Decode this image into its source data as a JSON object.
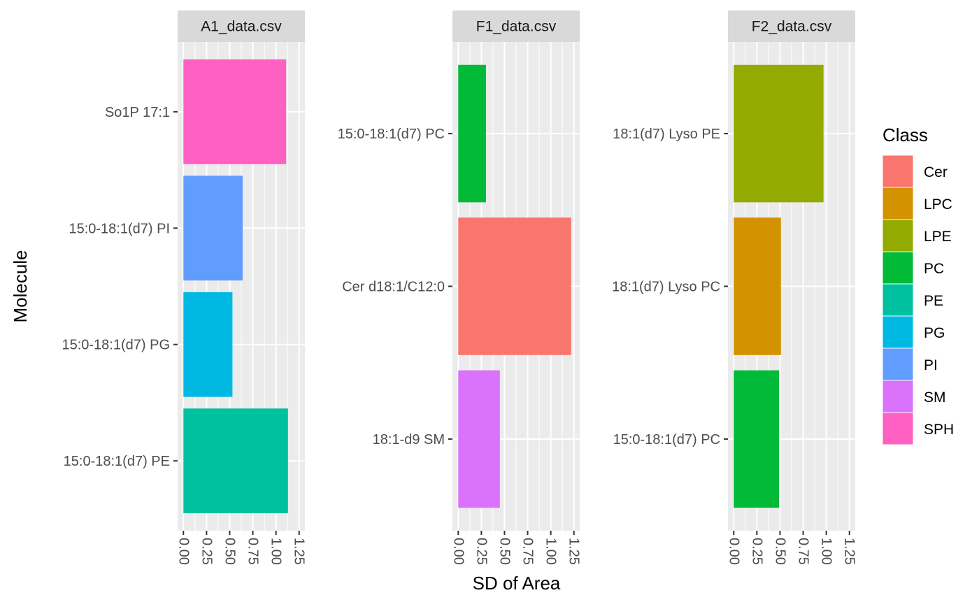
{
  "chart_data": {
    "type": "bar",
    "orientation": "horizontal",
    "faceted": true,
    "xlabel": "SD of Area",
    "ylabel": "Molecule",
    "xlim": [
      0,
      1.25
    ],
    "x_ticks": [
      "0.00",
      "0.25",
      "0.50",
      "0.75",
      "1.00",
      "1.25"
    ],
    "x_tick_values": [
      0,
      0.25,
      0.5,
      0.75,
      1.0,
      1.25
    ],
    "grid": true,
    "legend": {
      "title": "Class",
      "position": "right",
      "entries": [
        {
          "label": "Cer",
          "color": "#F8766D"
        },
        {
          "label": "LPC",
          "color": "#D39200"
        },
        {
          "label": "LPE",
          "color": "#93AA00"
        },
        {
          "label": "PC",
          "color": "#00BA38"
        },
        {
          "label": "PE",
          "color": "#00C19F"
        },
        {
          "label": "PG",
          "color": "#00B9E3"
        },
        {
          "label": "PI",
          "color": "#619CFF"
        },
        {
          "label": "SM",
          "color": "#DB72FB"
        },
        {
          "label": "SPH",
          "color": "#FF61C3"
        }
      ]
    },
    "facets": [
      {
        "title": "A1_data.csv",
        "bars": [
          {
            "molecule": "So1P 17:1",
            "value": 1.11,
            "class": "SPH"
          },
          {
            "molecule": "15:0-18:1(d7) PI",
            "value": 0.64,
            "class": "PI"
          },
          {
            "molecule": "15:0-18:1(d7) PG",
            "value": 0.53,
            "class": "PG"
          },
          {
            "molecule": "15:0-18:1(d7) PE",
            "value": 1.13,
            "class": "PE"
          }
        ]
      },
      {
        "title": "F1_data.csv",
        "bars": [
          {
            "molecule": "15:0-18:1(d7) PC",
            "value": 0.3,
            "class": "PC"
          },
          {
            "molecule": "Cer d18:1/C12:0",
            "value": 1.22,
            "class": "Cer"
          },
          {
            "molecule": "18:1-d9 SM",
            "value": 0.45,
            "class": "SM"
          }
        ]
      },
      {
        "title": "F2_data.csv",
        "bars": [
          {
            "molecule": "18:1(d7) Lyso PE",
            "value": 0.97,
            "class": "LPE"
          },
          {
            "molecule": "18:1(d7) Lyso PC",
            "value": 0.51,
            "class": "LPC"
          },
          {
            "molecule": "15:0-18:1(d7) PC",
            "value": 0.49,
            "class": "PC"
          }
        ]
      }
    ]
  }
}
